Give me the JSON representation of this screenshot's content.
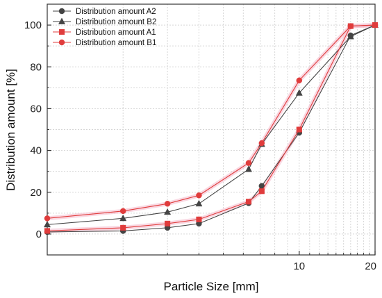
{
  "chart_data": {
    "type": "line",
    "title": "",
    "xlabel": "Particle Size [mm]",
    "ylabel": "Distribution amount [%]",
    "x_scale": "log",
    "xlim": [
      1.0,
      20
    ],
    "ylim": [
      -10,
      110
    ],
    "x_ticks": [
      10,
      20
    ],
    "x_tick_labels": [
      "10",
      "20"
    ],
    "y_ticks": [
      0,
      20,
      40,
      60,
      80,
      100
    ],
    "y_tick_labels": [
      "0",
      "20",
      "40",
      "60",
      "80",
      "100"
    ],
    "grid": true,
    "legend_position": "top-left",
    "series": [
      {
        "name": "Distribution amount A2",
        "marker": "circle",
        "color": "#444444",
        "x": [
          1.0,
          2.0,
          3.0,
          4.0,
          6.3,
          7.1,
          10,
          16,
          20
        ],
        "y": [
          1.0,
          1.5,
          3.0,
          5.0,
          14.8,
          23.0,
          48.5,
          95.0,
          100
        ]
      },
      {
        "name": "Distribution amount B2",
        "marker": "triangle",
        "color": "#444444",
        "x": [
          1.0,
          2.0,
          3.0,
          4.0,
          6.3,
          7.1,
          10,
          16,
          20
        ],
        "y": [
          4.5,
          7.5,
          10.5,
          14.5,
          31.0,
          43.0,
          67.5,
          94.5,
          100
        ]
      },
      {
        "name": "Distribution amount A1",
        "marker": "square",
        "color": "#e03c3c",
        "x": [
          1.0,
          2.0,
          3.0,
          4.0,
          6.3,
          7.1,
          10,
          16,
          20
        ],
        "y": [
          1.5,
          3.0,
          5.0,
          7.0,
          15.5,
          20.5,
          50.0,
          99.5,
          100
        ]
      },
      {
        "name": "Distribution amount B1",
        "marker": "circle",
        "color": "#e03c3c",
        "x": [
          1.0,
          2.0,
          3.0,
          4.0,
          6.3,
          7.1,
          10,
          16,
          20
        ],
        "y": [
          7.5,
          11.0,
          14.5,
          18.5,
          34.0,
          43.5,
          73.5,
          99.5,
          100
        ]
      }
    ]
  }
}
